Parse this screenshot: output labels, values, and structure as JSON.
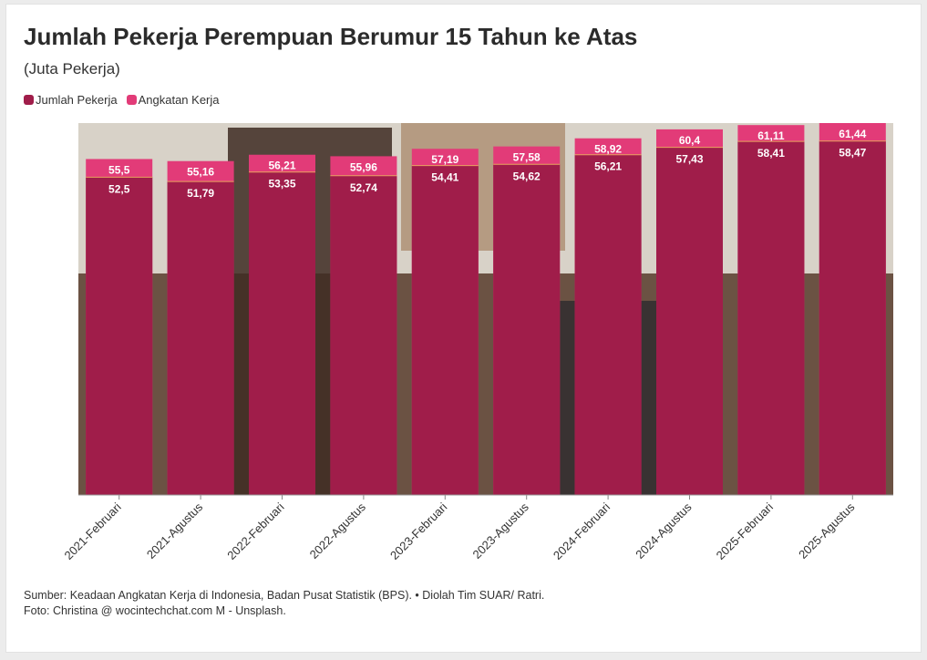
{
  "header": {
    "title": "Jumlah Pekerja Perempuan Berumur 15 Tahun ke Atas",
    "subtitle": "(Juta Pekerja)"
  },
  "legend": {
    "items": [
      {
        "label": "Jumlah Pekerja",
        "color": "#a01d4a"
      },
      {
        "label": "Angkatan Kerja",
        "color": "#e23b78"
      }
    ]
  },
  "footer": {
    "source": "Sumber: Keadaan Angkatan Kerja di Indonesia, Badan Pusat Statistik (BPS). • Diolah Tim SUAR/ Ratri.",
    "photo": "Foto: Christina @ wocintechchat.com M - Unsplash."
  },
  "chart_data": {
    "type": "bar",
    "categories": [
      "2021-Februari",
      "2021-Agustus",
      "2022-Februari",
      "2022-Agustus",
      "2023-Februari",
      "2023-Agustus",
      "2024-Februari",
      "2024-Agustus",
      "2025-Februari",
      "2025-Agustus"
    ],
    "series": [
      {
        "name": "Jumlah Pekerja",
        "values": [
          52.5,
          51.79,
          53.35,
          52.74,
          54.41,
          54.62,
          56.21,
          57.43,
          58.41,
          58.47
        ],
        "labels": [
          "52,5",
          "51,79",
          "53,35",
          "52,74",
          "54,41",
          "54,62",
          "56,21",
          "57,43",
          "58,41",
          "58,47"
        ],
        "color": "#a01d4a"
      },
      {
        "name": "Angkatan Kerja",
        "values": [
          55.5,
          55.16,
          56.21,
          55.96,
          57.19,
          57.58,
          58.92,
          60.4,
          61.11,
          61.44
        ],
        "labels": [
          "55,5",
          "55,16",
          "56,21",
          "55,96",
          "57,19",
          "57,58",
          "58,92",
          "60,4",
          "61,11",
          "61,44"
        ],
        "color": "#e23b78"
      }
    ],
    "overlap": true,
    "ylim": [
      0,
      61.44
    ],
    "grid": false,
    "legend_position": "top-left",
    "background_photo": true
  }
}
